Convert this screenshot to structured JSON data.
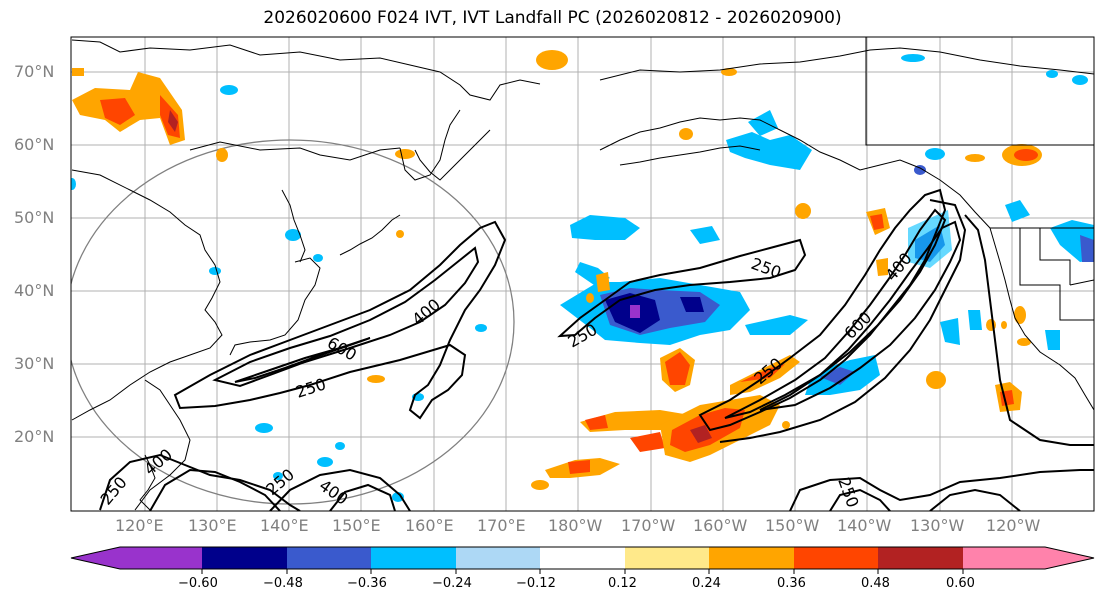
{
  "title": "2026020600 F024 IVT, IVT Landfall PC (2026020812 - 2026020900)",
  "lat_labels": [
    "70°N",
    "60°N",
    "50°N",
    "40°N",
    "30°N",
    "20°N"
  ],
  "lon_labels": [
    "120°E",
    "130°E",
    "140°E",
    "150°E",
    "160°E",
    "170°E",
    "180°W",
    "170°W",
    "160°W",
    "150°W",
    "140°W",
    "130°W",
    "120°W"
  ],
  "colorbar": {
    "ticks": [
      "−0.60",
      "−0.48",
      "−0.36",
      "−0.24",
      "−0.12",
      "0.12",
      "0.24",
      "0.36",
      "0.48",
      "0.60"
    ],
    "colors": [
      "#9933cc",
      "#00008b",
      "#3a5acd",
      "#00bfff",
      "#add8f5",
      "#ffffff",
      "#ffe98a",
      "#ffa500",
      "#ff4500",
      "#b22222",
      "#ff82ab"
    ]
  },
  "contour_labels": [
    {
      "text": "250",
      "region": "west-pacific"
    },
    {
      "text": "400",
      "region": "west-pacific"
    },
    {
      "text": "600",
      "region": "west-pacific"
    },
    {
      "text": "250",
      "region": "central-pacific"
    },
    {
      "text": "250",
      "region": "east-pacific"
    },
    {
      "text": "400",
      "region": "east-pacific"
    },
    {
      "text": "600",
      "region": "east-pacific"
    },
    {
      "text": "250",
      "region": "south-west"
    },
    {
      "text": "400",
      "region": "south-west"
    },
    {
      "text": "250",
      "region": "south-east"
    }
  ]
}
